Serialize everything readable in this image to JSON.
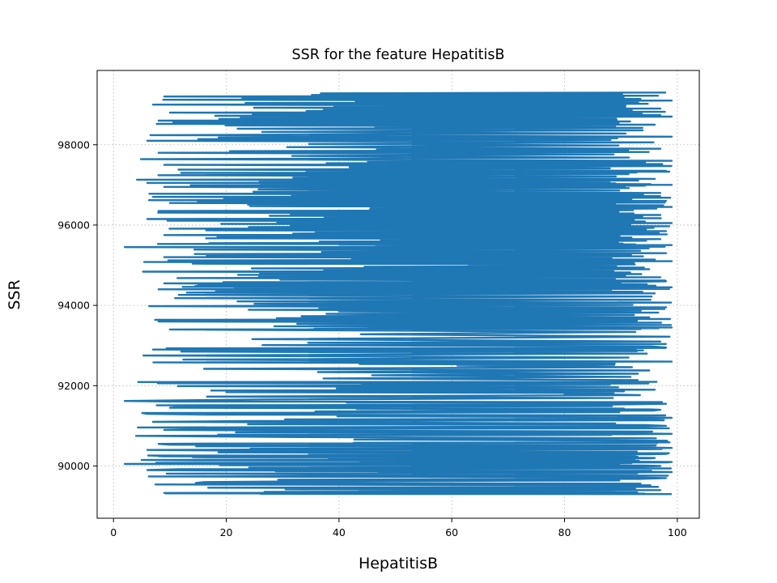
{
  "chart_data": {
    "type": "line",
    "title": "SSR for the feature HepatitisB",
    "xlabel": "HepatitisB",
    "ylabel": "SSR",
    "xlim": [
      -2.9,
      103.9
    ],
    "ylim": [
      88700,
      99850
    ],
    "x_ticks": [
      0,
      20,
      40,
      60,
      80,
      100
    ],
    "y_ticks": [
      90000,
      92000,
      94000,
      96000,
      98000
    ],
    "x_tick_labels": [
      "0",
      "20",
      "40",
      "60",
      "80",
      "100"
    ],
    "y_tick_labels": [
      "90000",
      "92000",
      "94000",
      "96000",
      "98000"
    ],
    "grid": true,
    "series": [
      {
        "color": "#1f77b4",
        "y_range": [
          89200,
          99300
        ],
        "x_range": [
          2,
          99
        ],
        "points": [
          [
            99,
            89300
          ],
          [
            9,
            89330
          ],
          [
            97,
            89400
          ],
          [
            93,
            89500
          ],
          [
            16,
            89600
          ],
          [
            98,
            89700
          ],
          [
            26,
            89800
          ],
          [
            99,
            89850
          ],
          [
            6,
            89900
          ],
          [
            97,
            90000
          ],
          [
            2,
            90050
          ],
          [
            99,
            90100
          ],
          [
            5,
            90150
          ],
          [
            96,
            90200
          ],
          [
            9,
            90250
          ],
          [
            98,
            90300
          ],
          [
            6,
            90400
          ],
          [
            99,
            90450
          ],
          [
            8,
            90550
          ],
          [
            97,
            90600
          ],
          [
            4,
            90750
          ],
          [
            99,
            90800
          ],
          [
            9,
            90900
          ],
          [
            98,
            91000
          ],
          [
            7,
            91100
          ],
          [
            99,
            91200
          ],
          [
            6,
            91300
          ],
          [
            97,
            91400
          ],
          [
            10,
            91450
          ],
          [
            98,
            91550
          ],
          [
            2,
            91620
          ],
          [
            80,
            91800
          ],
          [
            96,
            91900
          ],
          [
            44,
            92050
          ],
          [
            87,
            92100
          ],
          [
            9,
            92080
          ],
          [
            93,
            92300
          ],
          [
            61,
            92500
          ],
          [
            99,
            92600
          ],
          [
            7,
            92900
          ],
          [
            98,
            92950
          ],
          [
            12,
            92850
          ],
          [
            97,
            93100
          ],
          [
            10,
            93400
          ],
          [
            99,
            93450
          ],
          [
            8,
            93600
          ],
          [
            95,
            93700
          ],
          [
            40,
            93850
          ],
          [
            98,
            93950
          ],
          [
            22,
            94100
          ],
          [
            96,
            94300
          ],
          [
            8,
            94400
          ],
          [
            99,
            94450
          ],
          [
            9,
            94550
          ],
          [
            98,
            94600
          ],
          [
            15,
            94500
          ],
          [
            97,
            94700
          ],
          [
            26,
            94800
          ],
          [
            95,
            94900
          ],
          [
            63,
            95000
          ],
          [
            99,
            95100
          ],
          [
            9,
            95200
          ],
          [
            98,
            95300
          ],
          [
            2,
            95450
          ],
          [
            99,
            95500
          ],
          [
            17,
            95550
          ],
          [
            97,
            95650
          ],
          [
            9,
            95750
          ],
          [
            98,
            95850
          ],
          [
            24,
            95950
          ],
          [
            99,
            96050
          ],
          [
            6,
            96150
          ],
          [
            97,
            96250
          ],
          [
            8,
            96350
          ],
          [
            99,
            96450
          ],
          [
            10,
            96550
          ],
          [
            98,
            96600
          ],
          [
            7,
            96700
          ],
          [
            97,
            96800
          ],
          [
            9,
            96950
          ],
          [
            99,
            97000
          ],
          [
            6,
            97050
          ],
          [
            96,
            97150
          ],
          [
            12,
            97300
          ],
          [
            98,
            97350
          ],
          [
            9,
            97500
          ],
          [
            99,
            97600
          ],
          [
            8,
            97800
          ],
          [
            97,
            97900
          ],
          [
            6,
            98100
          ],
          [
            99,
            98200
          ],
          [
            22,
            98400
          ],
          [
            96,
            98500
          ],
          [
            8,
            98600
          ],
          [
            99,
            98700
          ],
          [
            10,
            98800
          ],
          [
            97,
            98900
          ],
          [
            7,
            99000
          ],
          [
            99,
            99100
          ],
          [
            9,
            99200
          ],
          [
            98,
            99300
          ]
        ]
      }
    ]
  }
}
